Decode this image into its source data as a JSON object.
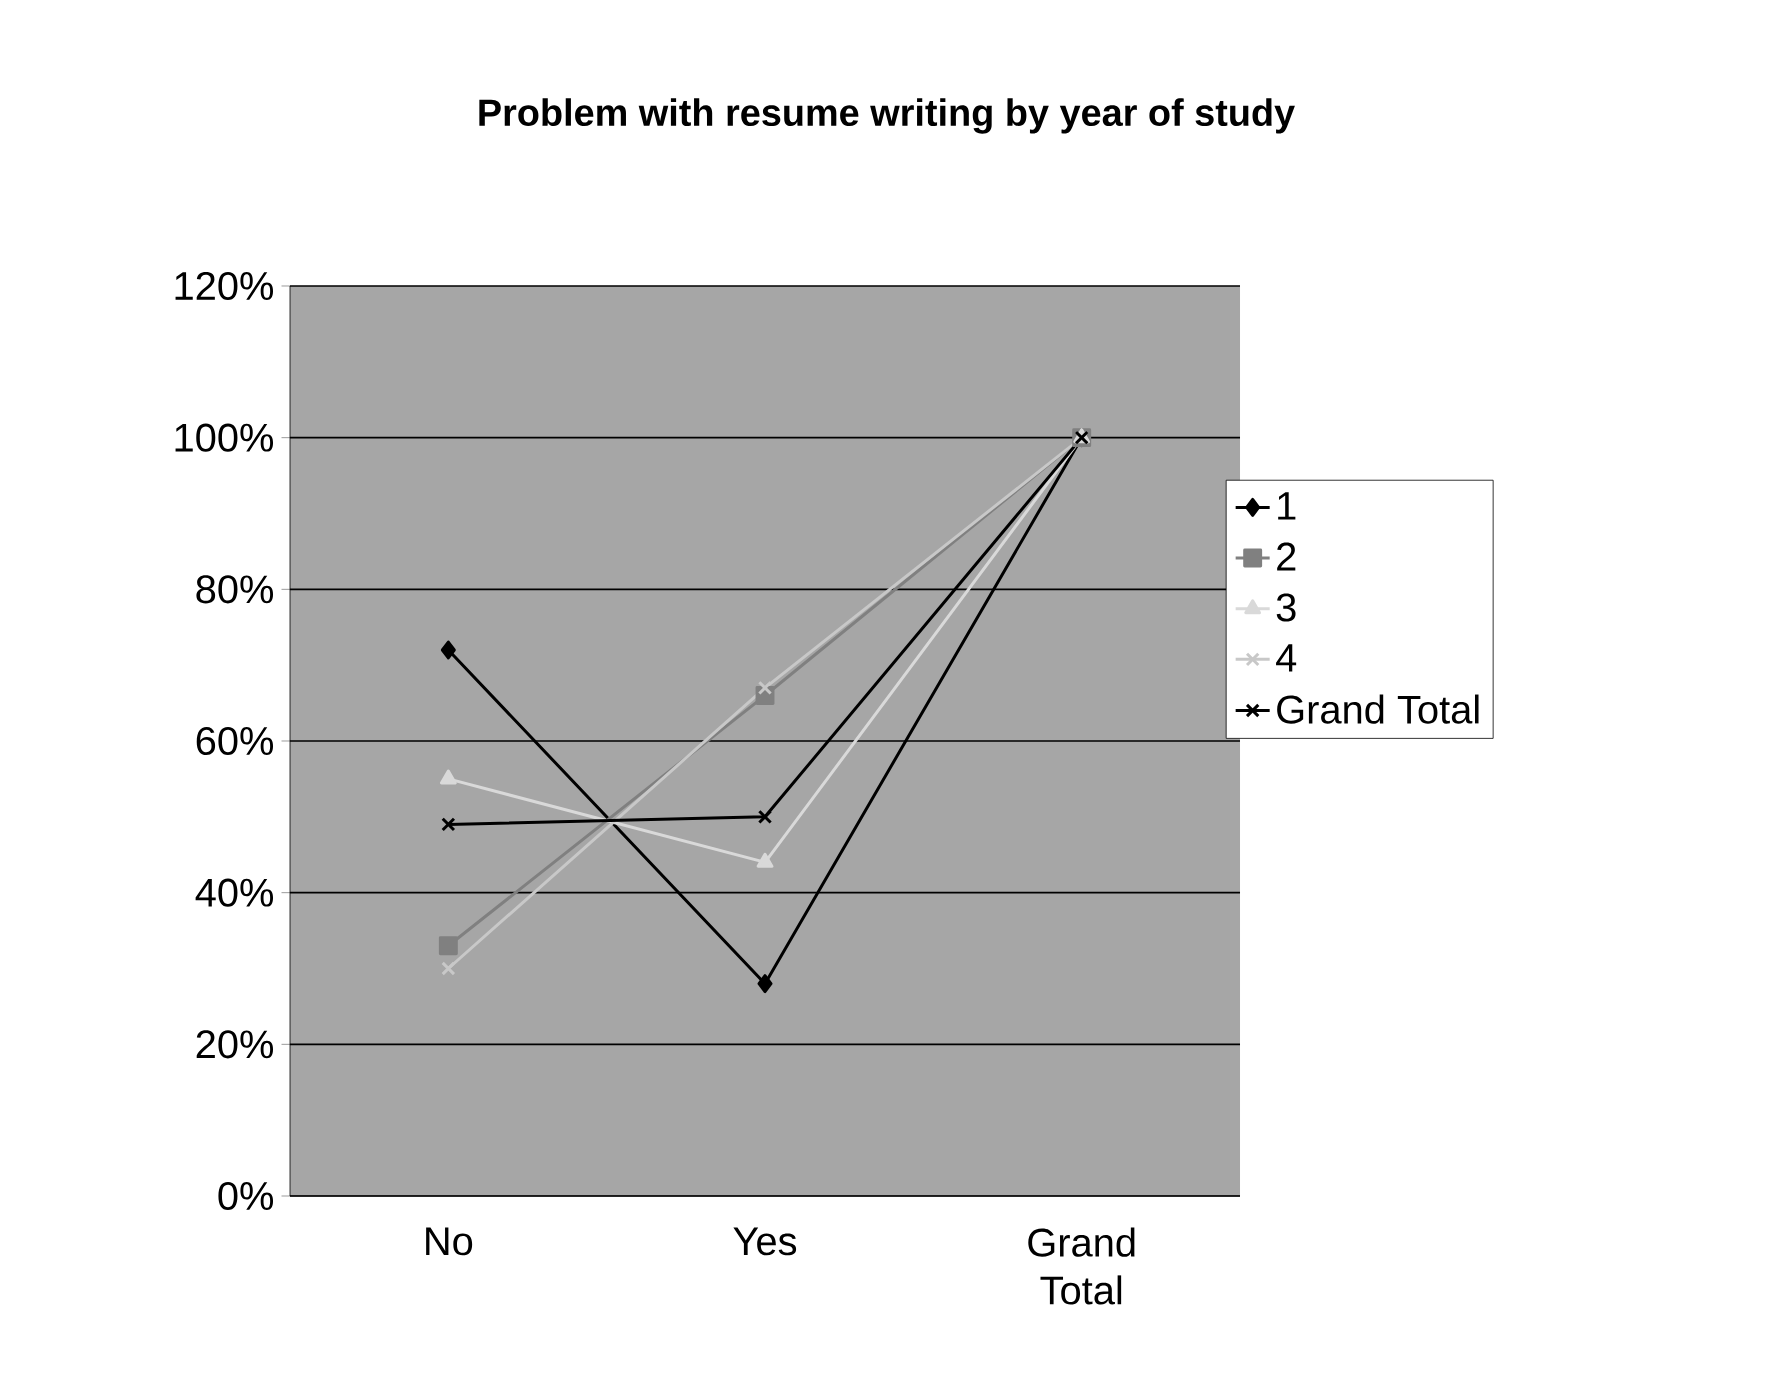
{
  "chart_data": {
    "type": "line",
    "title": "Problem with resume writing by year of study",
    "categories": [
      "No",
      "Yes",
      "Grand Total"
    ],
    "series": [
      {
        "name": "1",
        "color": "#000000",
        "marker": "diamond",
        "values": [
          72,
          28,
          100
        ]
      },
      {
        "name": "2",
        "color": "#808080",
        "marker": "square",
        "values": [
          33,
          66,
          100
        ]
      },
      {
        "name": "3",
        "color": "#d9d9d9",
        "marker": "triangle",
        "values": [
          55,
          44,
          100
        ]
      },
      {
        "name": "4",
        "color": "#c8c8c8",
        "marker": "cross",
        "values": [
          30,
          67,
          100
        ]
      },
      {
        "name": "Grand Total",
        "color": "#000000",
        "marker": "cross",
        "values": [
          49,
          50,
          100
        ]
      }
    ],
    "ylim": [
      0,
      120
    ],
    "yticks": [
      {
        "value": 0,
        "label": "0%"
      },
      {
        "value": 20,
        "label": "20%"
      },
      {
        "value": 40,
        "label": "40%"
      },
      {
        "value": 60,
        "label": "60%"
      },
      {
        "value": 80,
        "label": "80%"
      },
      {
        "value": 100,
        "label": "100%"
      },
      {
        "value": 120,
        "label": "120%"
      }
    ],
    "grid": "y",
    "legend": "right",
    "line_style": "solid"
  }
}
